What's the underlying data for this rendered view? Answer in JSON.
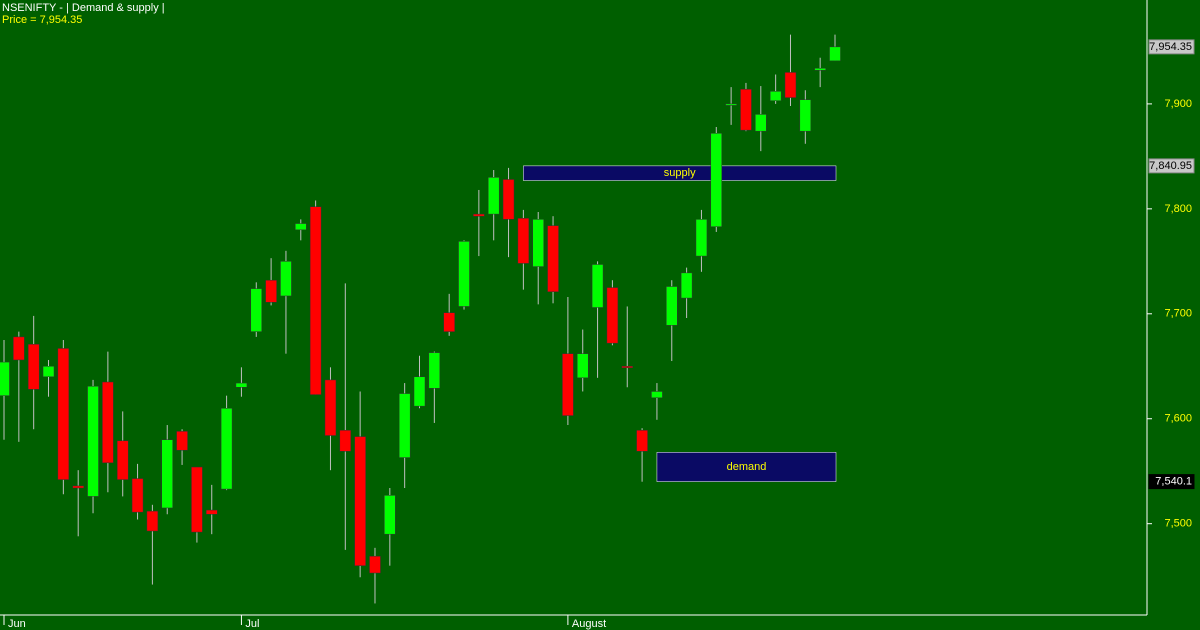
{
  "chart_data": {
    "type": "candlestick",
    "title": "NSENIFTY -  | Demand & supply |",
    "subtitle": "Price = 7,954.35",
    "categories": [
      "Jun",
      null,
      null,
      null,
      null,
      null,
      null,
      null,
      null,
      null,
      null,
      null,
      null,
      null,
      null,
      null,
      "Jul",
      null,
      null,
      null,
      null,
      null,
      null,
      null,
      null,
      null,
      null,
      null,
      null,
      null,
      null,
      null,
      null,
      null,
      null,
      null,
      null,
      null,
      "August",
      null,
      null,
      null,
      null,
      null,
      null,
      null,
      null,
      null,
      null,
      null,
      null,
      null,
      null,
      null,
      null,
      null,
      null
    ],
    "open": [
      7622,
      7678,
      7671,
      7640,
      7667,
      7536,
      7526,
      7635,
      7579,
      7543,
      7512,
      7515,
      7588,
      7554,
      7513,
      7533,
      7630,
      7683,
      7732,
      7717,
      7780,
      7802,
      7637,
      7589,
      7583,
      7469,
      7490,
      7563,
      7612,
      7629,
      7701,
      7707,
      7795,
      7795,
      7828,
      7791,
      7745,
      7784,
      7662,
      7639,
      7706,
      7725,
      7650,
      7589,
      7620,
      7689,
      7715,
      7755,
      7783,
      7899,
      7914,
      7874,
      7903,
      7930,
      7874,
      7932,
      7941
    ],
    "high": [
      7675,
      7683,
      7698,
      7656,
      7675,
      7551,
      7637,
      7664,
      7607,
      7557,
      7518,
      7594,
      7590,
      7554,
      7537,
      7622,
      7649,
      7730,
      7753,
      7760,
      7790,
      7808,
      7649,
      7729,
      7626,
      7477,
      7534,
      7634,
      7660,
      7664,
      7719,
      7770,
      7818,
      7837,
      7839,
      7799,
      7797,
      7793,
      7716,
      7685,
      7750,
      7732,
      7707,
      7591,
      7634,
      7732,
      7744,
      7799,
      7878,
      7916,
      7920,
      7917,
      7928,
      7966,
      7913,
      7944,
      7966
    ],
    "low": [
      7580,
      7578,
      7590,
      7621,
      7528,
      7488,
      7510,
      7530,
      7526,
      7504,
      7442,
      7509,
      7556,
      7482,
      7490,
      7532,
      7621,
      7678,
      7708,
      7662,
      7770,
      7623,
      7551,
      7475,
      7449,
      7424,
      7460,
      7534,
      7610,
      7596,
      7679,
      7704,
      7755,
      7770,
      7754,
      7723,
      7709,
      7710,
      7594,
      7626,
      7639,
      7670,
      7630,
      7540,
      7599,
      7655,
      7696,
      7740,
      7778,
      7880,
      7874,
      7855,
      7900,
      7898,
      7862,
      7916,
      7941
    ],
    "close": [
      7654,
      7656,
      7628,
      7650,
      7542,
      7534,
      7631,
      7558,
      7542,
      7511,
      7493,
      7580,
      7570,
      7492,
      7509,
      7610,
      7634,
      7724,
      7711,
      7750,
      7786,
      7623,
      7584,
      7569,
      7460,
      7453,
      7527,
      7624,
      7640,
      7663,
      7683,
      7769,
      7793,
      7830,
      7790,
      7748,
      7790,
      7721,
      7603,
      7662,
      7747,
      7672,
      7649,
      7569,
      7626,
      7726,
      7739,
      7790,
      7872,
      7900,
      7875,
      7890,
      7912,
      7906,
      7904,
      7934,
      7954.35
    ],
    "up_color": "#00ff00",
    "down_color": "#ff0000",
    "ylim": [
      7413,
      7999
    ],
    "yticks": [
      {
        "value": 7500,
        "label": "7,500"
      },
      {
        "value": 7600,
        "label": "7,600"
      },
      {
        "value": 7700,
        "label": "7,700"
      },
      {
        "value": 7800,
        "label": "7,800"
      },
      {
        "value": 7900,
        "label": "7,900"
      }
    ],
    "zones": [
      {
        "label": "supply",
        "start": 35,
        "end": 56,
        "top": 7840.95,
        "bottom": 7827
      },
      {
        "label": "demand",
        "start": 44,
        "end": 56,
        "top": 7568,
        "bottom": 7540.1
      }
    ],
    "price_markers": [
      {
        "value": 7954.35,
        "label": "7,954.35",
        "color": "#c8c8c8"
      },
      {
        "value": 7840.95,
        "label": "7,840.95",
        "color": "#c8c8c8"
      },
      {
        "value": 7540.1,
        "label": "7,540.1",
        "color": "#000000"
      }
    ]
  }
}
